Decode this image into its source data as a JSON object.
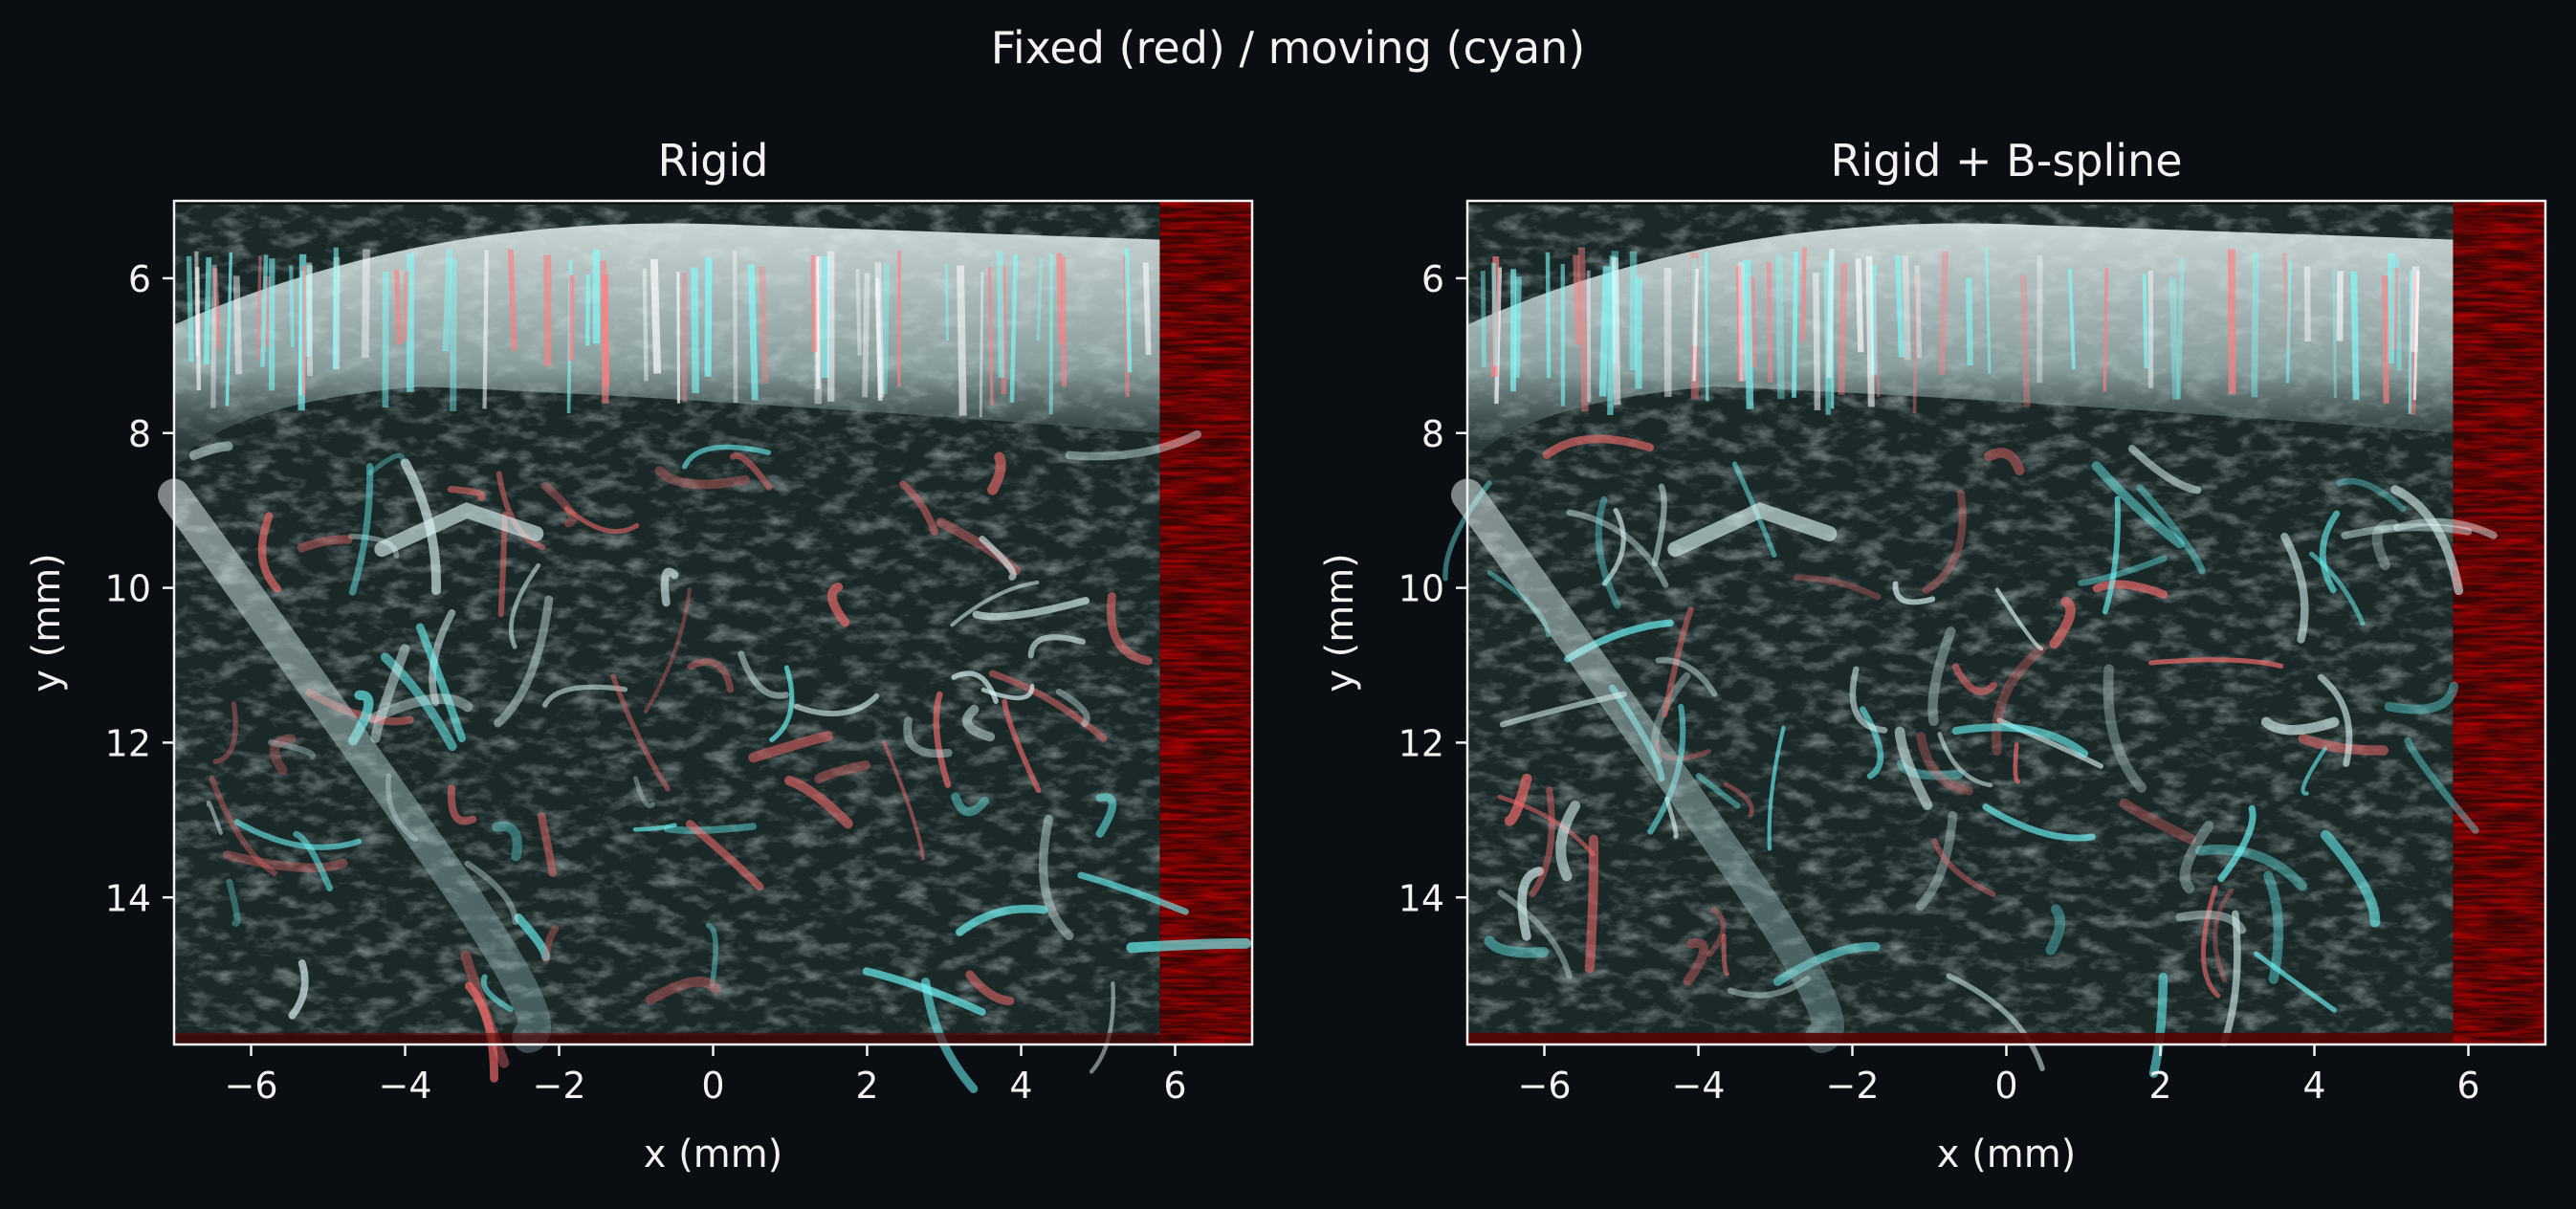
{
  "figure": {
    "suptitle": "Fixed (red) / moving (cyan)",
    "background_color": "#0a0d12",
    "text_color": "#f2f2f2",
    "fixed_color": "#ff0000",
    "moving_color": "#00ffff"
  },
  "chart_data": [
    {
      "type": "heatmap",
      "title": "Rigid",
      "xlabel": "x (mm)",
      "ylabel": "y (mm)",
      "xlim": [
        -7,
        7
      ],
      "ylim": [
        15.9,
        5
      ],
      "y_inverted": true,
      "xticks": [
        -6,
        -4,
        -2,
        0,
        2,
        4,
        6
      ],
      "xtick_labels": [
        "−6",
        "−4",
        "−2",
        "0",
        "2",
        "4",
        "6"
      ],
      "yticks": [
        6,
        8,
        10,
        12,
        14
      ],
      "ytick_labels": [
        "6",
        "8",
        "10",
        "12",
        "14"
      ],
      "grid": false,
      "fixed_only_region_x": [
        5.8,
        7
      ],
      "overlay": "red/cyan composite ultrasound vasculature image"
    },
    {
      "type": "heatmap",
      "title": "Rigid + B-spline",
      "xlabel": "x (mm)",
      "ylabel": "y (mm)",
      "xlim": [
        -7,
        7
      ],
      "ylim": [
        15.9,
        5
      ],
      "y_inverted": true,
      "xticks": [
        -6,
        -4,
        -2,
        0,
        2,
        4,
        6
      ],
      "xtick_labels": [
        "−6",
        "−4",
        "−2",
        "0",
        "2",
        "4",
        "6"
      ],
      "yticks": [
        6,
        8,
        10,
        12,
        14
      ],
      "ytick_labels": [
        "6",
        "8",
        "10",
        "12",
        "14"
      ],
      "grid": false,
      "fixed_only_region_x": [
        5.8,
        7
      ],
      "overlay": "red/cyan composite ultrasound vasculature image"
    }
  ]
}
